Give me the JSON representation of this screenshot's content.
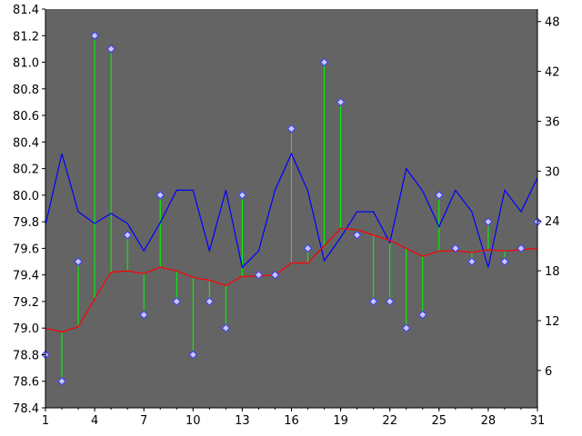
{
  "chart_data": {
    "type": "line",
    "plot_background": "#646464",
    "page_background": "#ffffff",
    "grid": false,
    "legend": "none",
    "x": [
      1,
      2,
      3,
      4,
      5,
      6,
      7,
      8,
      9,
      10,
      11,
      12,
      13,
      14,
      15,
      16,
      17,
      18,
      19,
      20,
      21,
      22,
      23,
      24,
      25,
      26,
      27,
      28,
      29,
      30,
      31
    ],
    "xlim": [
      1,
      31
    ],
    "x_ticks": [
      1,
      4,
      7,
      10,
      13,
      16,
      19,
      22,
      25,
      28,
      31
    ],
    "y_left": {
      "ylim": [
        78.4,
        81.4
      ],
      "ticks": [
        "78.4",
        "78.6",
        "78.8",
        "79.0",
        "79.2",
        "79.4",
        "79.6",
        "79.8",
        "80.0",
        "80.2",
        "80.4",
        "80.6",
        "80.8",
        "81.0",
        "81.2",
        "81.4"
      ]
    },
    "y_right": {
      "ylim": [
        1.5,
        49.5
      ],
      "ticks": [
        6,
        12,
        18,
        24,
        30,
        36,
        42,
        48
      ]
    },
    "series": [
      {
        "axis": "left",
        "style": "markers",
        "marker": "diamond",
        "color": "#c8c8ff",
        "stem_color": "#00ff00",
        "values": [
          78.8,
          78.6,
          79.5,
          81.2,
          81.1,
          79.7,
          79.1,
          80.0,
          79.2,
          78.8,
          79.2,
          79.0,
          80.0,
          79.4,
          79.4,
          80.5,
          79.6,
          81.0,
          80.7,
          79.7,
          79.2,
          79.2,
          79.0,
          79.1,
          80.0,
          79.6,
          79.5,
          79.8,
          79.5,
          79.6,
          79.8
        ]
      },
      {
        "axis": "left",
        "style": "line",
        "color": "#ff0000",
        "values": [
          79.0,
          78.97,
          79.01,
          79.22,
          79.42,
          79.43,
          79.41,
          79.46,
          79.43,
          79.38,
          79.36,
          79.32,
          79.39,
          79.39,
          79.4,
          79.49,
          79.49,
          79.62,
          79.75,
          79.74,
          79.7,
          79.66,
          79.6,
          79.54,
          79.58,
          79.58,
          79.57,
          79.59,
          79.58,
          79.59,
          79.6
        ]
      },
      {
        "axis": "right",
        "style": "line",
        "color": "#0000ff",
        "values": [
          23.5,
          32.1,
          25.1,
          23.7,
          24.9,
          23.7,
          20.4,
          23.8,
          27.7,
          27.7,
          20.4,
          27.7,
          18.4,
          20.4,
          27.7,
          32.1,
          27.6,
          19.2,
          22.0,
          25.1,
          25.1,
          21.4,
          30.3,
          27.6,
          23.3,
          27.7,
          25.1,
          18.4,
          27.7,
          25.1,
          29.2
        ]
      }
    ]
  }
}
